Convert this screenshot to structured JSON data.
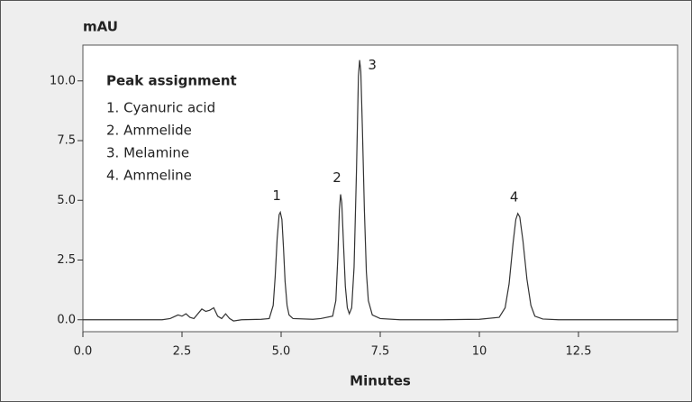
{
  "chart_data": {
    "type": "line",
    "ylabel": "mAU",
    "xlabel": "Minutes",
    "xlim": [
      0,
      15
    ],
    "ylim": [
      -0.5,
      11.5
    ],
    "xticks": [
      {
        "value": 0,
        "label": "0.0"
      },
      2.5,
      {
        "value": 5,
        "label": "5.0"
      },
      7.5,
      10,
      12.5
    ],
    "yticks": [
      {
        "value": 0,
        "label": "0.0"
      },
      2.5,
      {
        "value": 5,
        "label": "5.0"
      },
      7.5,
      {
        "value": 10,
        "label": "10.0"
      }
    ],
    "legend_title": "Peak assignment",
    "legend_items": [
      "1. Cyanuric acid",
      "2. Ammelide",
      "3. Melamine",
      "4. Ammeline"
    ],
    "peak_labels": [
      {
        "text": "1",
        "x": 4.98,
        "y": 4.5
      },
      {
        "text": "2",
        "x": 6.5,
        "y": 5.25
      },
      {
        "text": "3",
        "x": 6.98,
        "y": 10.87
      },
      {
        "text": "4",
        "x": 10.97,
        "y": 4.45
      }
    ],
    "series": [
      {
        "color": "#333333",
        "x": [
          0,
          1,
          2.0,
          2.2,
          2.4,
          2.5,
          2.6,
          2.7,
          2.8,
          3.0,
          3.1,
          3.2,
          3.3,
          3.4,
          3.5,
          3.6,
          3.7,
          3.8,
          4.0,
          4.5,
          4.7,
          4.8,
          4.85,
          4.9,
          4.95,
          4.98,
          5.02,
          5.06,
          5.1,
          5.15,
          5.2,
          5.3,
          5.8,
          6.0,
          6.3,
          6.38,
          6.43,
          6.47,
          6.5,
          6.53,
          6.57,
          6.62,
          6.67,
          6.72,
          6.78,
          6.84,
          6.9,
          6.95,
          6.98,
          7.01,
          7.05,
          7.1,
          7.15,
          7.2,
          7.3,
          7.5,
          8,
          9,
          10,
          10.5,
          10.65,
          10.75,
          10.85,
          10.92,
          10.97,
          11.02,
          11.1,
          11.2,
          11.3,
          11.4,
          11.6,
          12,
          13,
          14,
          15
        ],
        "values": [
          0,
          0,
          0,
          0.05,
          0.2,
          0.15,
          0.25,
          0.1,
          0.05,
          0.45,
          0.35,
          0.4,
          0.5,
          0.15,
          0.05,
          0.25,
          0.05,
          -0.05,
          0,
          0.02,
          0.05,
          0.6,
          1.8,
          3.4,
          4.4,
          4.5,
          4.2,
          3.0,
          1.6,
          0.6,
          0.2,
          0.05,
          0.02,
          0.05,
          0.15,
          0.8,
          2.6,
          4.6,
          5.25,
          4.9,
          3.3,
          1.4,
          0.5,
          0.25,
          0.5,
          2.2,
          6.2,
          10.2,
          10.87,
          10.4,
          8.0,
          4.6,
          2.0,
          0.8,
          0.2,
          0.05,
          0,
          0,
          0.02,
          0.1,
          0.5,
          1.5,
          3.2,
          4.2,
          4.45,
          4.3,
          3.3,
          1.7,
          0.6,
          0.15,
          0.03,
          0,
          0,
          0,
          0
        ]
      }
    ]
  }
}
